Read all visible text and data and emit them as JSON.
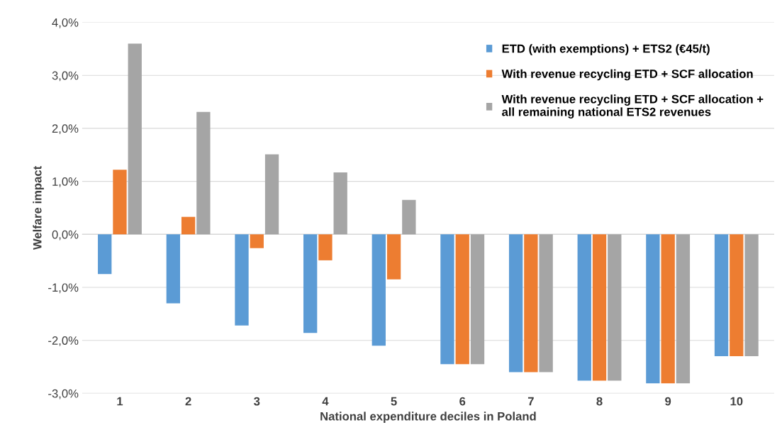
{
  "chart_data": {
    "type": "bar",
    "xlabel": "National expenditure deciles in Poland",
    "ylabel": "Welfare impact",
    "categories": [
      "1",
      "2",
      "3",
      "4",
      "5",
      "6",
      "7",
      "8",
      "9",
      "10"
    ],
    "series": [
      {
        "name": "ETD (with exemptions) + ETS2 (€45/t)",
        "color": "#5b9bd5",
        "values": [
          -0.75,
          -1.3,
          -1.72,
          -1.86,
          -2.1,
          -2.45,
          -2.6,
          -2.76,
          -2.81,
          -2.3
        ]
      },
      {
        "name": "With revenue recycling ETD + SCF allocation",
        "color": "#ed7d31",
        "values": [
          1.22,
          0.33,
          -0.26,
          -0.49,
          -0.85,
          -2.45,
          -2.6,
          -2.76,
          -2.81,
          -2.3
        ]
      },
      {
        "name": "With revenue recycling ETD + SCF allocation +\nall remaining national ETS2 revenues",
        "color": "#a5a5a5",
        "values": [
          3.6,
          2.31,
          1.51,
          1.17,
          0.65,
          -2.45,
          -2.6,
          -2.76,
          -2.81,
          -2.3
        ]
      }
    ],
    "ylim": [
      -3,
      4
    ],
    "yticks": [
      {
        "value": -3,
        "label": "-3,0%"
      },
      {
        "value": -2,
        "label": "-2,0%"
      },
      {
        "value": -1,
        "label": "-1,0%"
      },
      {
        "value": 0,
        "label": "0,0%"
      },
      {
        "value": 1,
        "label": "1,0%"
      },
      {
        "value": 2,
        "label": "2,0%"
      },
      {
        "value": 3,
        "label": "3,0%"
      },
      {
        "value": 4,
        "label": "4,0%"
      }
    ],
    "grid": "y",
    "legend": "top right"
  }
}
